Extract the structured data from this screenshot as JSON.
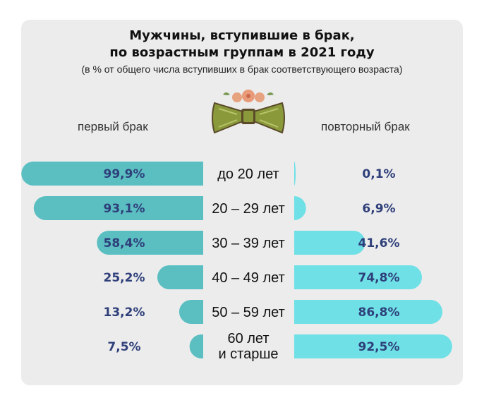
{
  "title_line1": "Мужчины, вступившие в брак,",
  "title_line2": "по возрастным группам в 2021 году",
  "subtitle": "(в % от общего числа вступивших в брак соответствующего возраста)",
  "chart_data": {
    "type": "bar",
    "orientation": "horizontal-diverging",
    "categories": [
      [
        "до 20 лет"
      ],
      [
        "20 – 29 лет"
      ],
      [
        "30 – 39 лет"
      ],
      [
        "40 – 49 лет"
      ],
      [
        "50 – 59 лет"
      ],
      [
        "60 лет",
        "и старше"
      ]
    ],
    "series": [
      {
        "name": "первый брак",
        "values": [
          99.9,
          93.1,
          58.4,
          25.2,
          13.2,
          7.5
        ],
        "labels": [
          "99,9%",
          "93,1%",
          "58,4%",
          "25,2%",
          "13,2%",
          "7,5%"
        ],
        "color": "#5bbfc2"
      },
      {
        "name": "повторный брак",
        "values": [
          0.1,
          6.9,
          41.6,
          74.8,
          86.8,
          92.5
        ],
        "labels": [
          "0,1%",
          "6,9%",
          "41,6%",
          "74,8%",
          "86,8%",
          "92,5%"
        ],
        "color": "#6ee0e6"
      }
    ],
    "xlim": [
      0,
      100
    ]
  },
  "icons": {
    "bow": "bow-tie-with-flowers-icon"
  },
  "colors": {
    "background": "#ececec",
    "label": "#2e3f7a"
  }
}
